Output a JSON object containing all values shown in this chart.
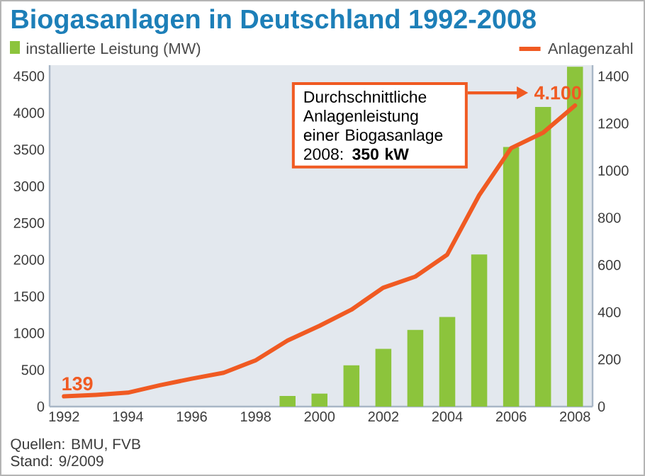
{
  "chart_data": {
    "type": "bar",
    "title": "Biogasanlagen in Deutschland 1992-2008",
    "series": [
      {
        "name": "installierte Leistung (MW)",
        "axis": "y2",
        "color": "#8cc43c",
        "x": [
          1999,
          2000,
          2001,
          2002,
          2003,
          2004,
          2005,
          2006,
          2007,
          2008
        ],
        "values": [
          45,
          55,
          175,
          245,
          325,
          380,
          645,
          1100,
          1270,
          1440
        ]
      },
      {
        "name": "Anlagenzahl",
        "type": "line",
        "color": "#f05a22",
        "x": [
          1992,
          1993,
          1994,
          1995,
          1996,
          1997,
          1998,
          1999,
          2000,
          2001,
          2002,
          2003,
          2004,
          2005,
          2006,
          2007,
          2008
        ],
        "values": [
          139,
          160,
          190,
          290,
          380,
          460,
          630,
          900,
          1100,
          1320,
          1620,
          1770,
          2070,
          2880,
          3520,
          3730,
          4100
        ],
        "value_labels": [
          "139",
          null,
          null,
          null,
          null,
          null,
          null,
          null,
          null,
          null,
          null,
          null,
          null,
          null,
          null,
          null,
          "4.100"
        ]
      }
    ],
    "xlim": [
      1991.55,
      2008.55
    ],
    "xticks": [
      1992,
      1994,
      1996,
      1998,
      2000,
      2002,
      2004,
      2006,
      2008
    ],
    "ylim": [
      0,
      4650
    ],
    "yticks": [
      0,
      500,
      1000,
      1500,
      2000,
      2500,
      3000,
      3500,
      4000,
      4500
    ],
    "y2lim": [
      0,
      1447
    ],
    "y2ticks": [
      0,
      200,
      400,
      600,
      800,
      1000,
      1200,
      1400
    ],
    "legend": "top",
    "annotations": [
      "Durchschnittliche Anlagenleistung einer Biogasanlage 2008: **350 kW**",
      "Quellen: BMU, FVB",
      "Stand: 9/2009"
    ]
  }
}
